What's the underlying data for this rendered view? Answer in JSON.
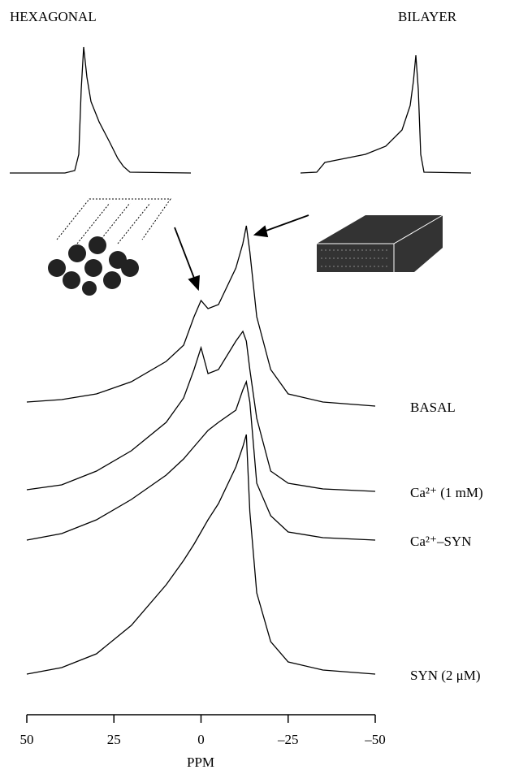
{
  "chart_data": {
    "type": "line",
    "title_left": "HEXAGONAL",
    "title_right": "BILAYER",
    "x_label": "PPM",
    "x": [
      50,
      40,
      30,
      20,
      10,
      5,
      2,
      0,
      -2,
      -5,
      -10,
      -12,
      -13,
      -14,
      -16,
      -20,
      -25,
      -35,
      -50
    ],
    "xlim": [
      50,
      -50
    ],
    "xticks": [
      50,
      25,
      0,
      {
        "value": -25,
        "label": "–25"
      },
      {
        "value": -50,
        "label": "–50"
      }
    ],
    "series": [
      {
        "name": "BASAL",
        "color": "#000000",
        "values": [
          5,
          8,
          15,
          30,
          55,
          75,
          110,
          130,
          120,
          125,
          170,
          200,
          222,
          190,
          110,
          45,
          15,
          5,
          0
        ]
      },
      {
        "name": "Ca²⁺ (1 mM)",
        "color": "#000000",
        "values": [
          2,
          8,
          25,
          50,
          85,
          115,
          150,
          177,
          145,
          150,
          185,
          197,
          185,
          150,
          90,
          25,
          10,
          3,
          0
        ]
      },
      {
        "name": "Ca²⁺–SYN",
        "color": "#000000",
        "values": [
          0,
          8,
          25,
          50,
          80,
          100,
          115,
          125,
          135,
          145,
          160,
          185,
          195,
          170,
          70,
          30,
          10,
          3,
          0
        ]
      },
      {
        "name": "SYN (2 μM)",
        "color": "#000000",
        "values": [
          0,
          8,
          25,
          60,
          110,
          140,
          160,
          175,
          190,
          210,
          255,
          280,
          295,
          200,
          100,
          40,
          15,
          5,
          0
        ]
      }
    ]
  }
}
